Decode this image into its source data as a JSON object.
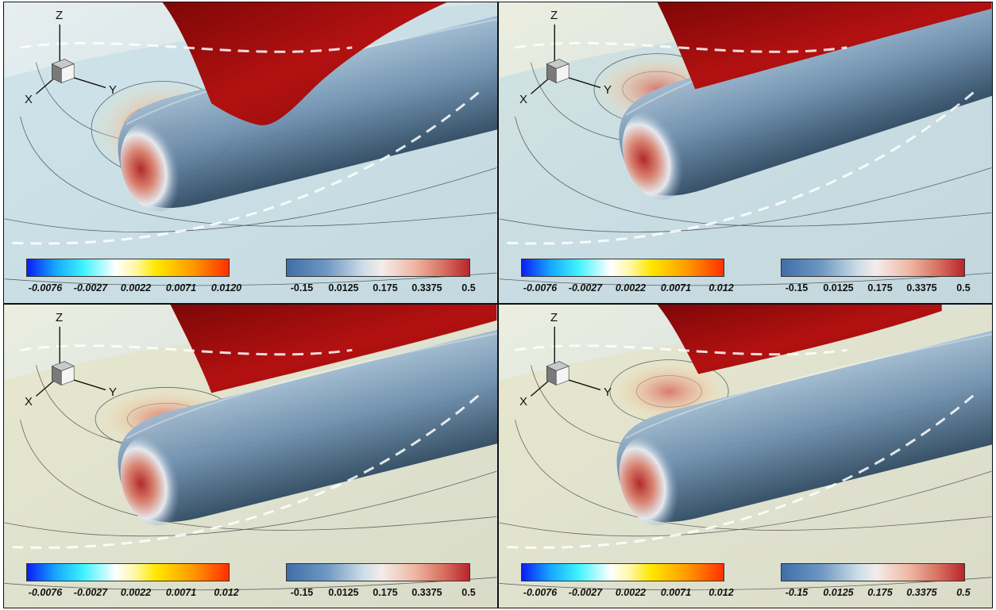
{
  "axes_labels": {
    "z": "Z",
    "x": "X",
    "y": "Y"
  },
  "colors": {
    "red_surface": "#a80f0f",
    "background": "#d9e0e2",
    "left_colorbar": [
      "#0a1cf5",
      "#3ff3ff",
      "#ffffff",
      "#ffe800",
      "#ff3000"
    ],
    "right_colorbar": [
      "#3f6ea8",
      "#cddde8",
      "#f4ecea",
      "#b8252c"
    ]
  },
  "panels": [
    {
      "left_ticks": [
        "-0.0076",
        "-0.0027",
        "0.0022",
        "0.0071",
        "0.0120"
      ],
      "right_ticks": [
        "-0.15",
        "0.0125",
        "0.175",
        "0.3375",
        "0.5"
      ],
      "right_style": "bold"
    },
    {
      "left_ticks": [
        "-0.0076",
        "-0.0027",
        "0.0022",
        "0.0071",
        "0.012"
      ],
      "right_ticks": [
        "-0.15",
        "0.0125",
        "0.175",
        "0.3375",
        "0.5"
      ],
      "right_style": "bold"
    },
    {
      "left_ticks": [
        "-0.0076",
        "-0.0027",
        "0.0022",
        "0.0071",
        "0.012"
      ],
      "right_ticks": [
        "-0.15",
        "0.0125",
        "0.175",
        "0.3375",
        "0.5"
      ],
      "right_style": "bold"
    },
    {
      "left_ticks": [
        "-0.0076",
        "-0.0027",
        "0.0022",
        "0.0071",
        "0.012"
      ],
      "right_ticks": [
        "-0.15",
        "0.0125",
        "0.175",
        "0.3375",
        "0.5"
      ],
      "right_style": "italic"
    }
  ]
}
